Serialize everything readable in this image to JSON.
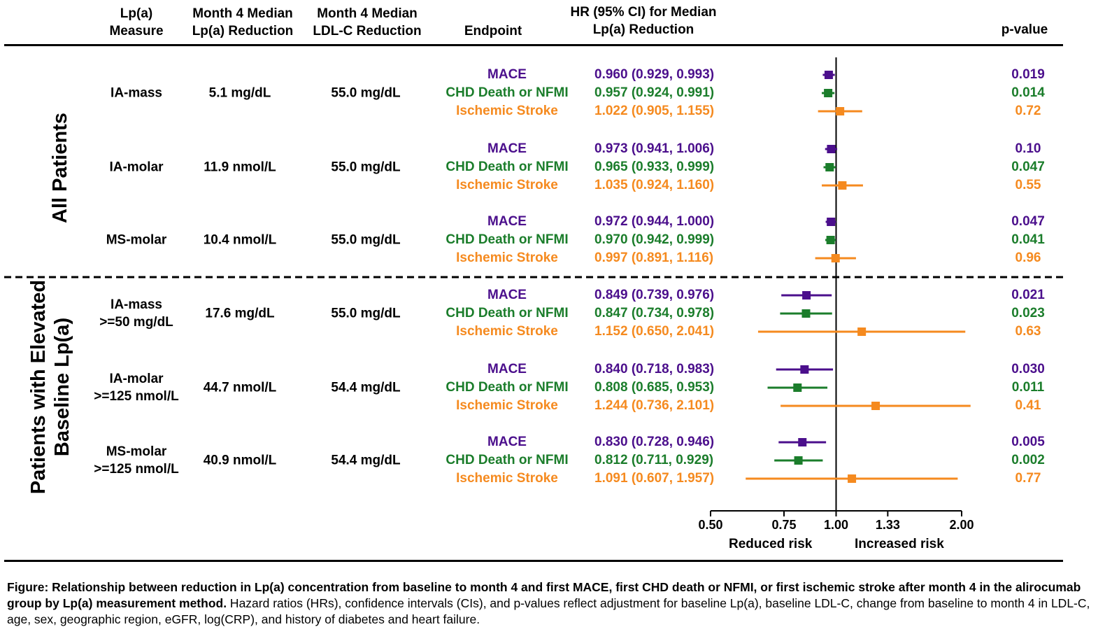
{
  "headers": {
    "measure": "Lp(a)\nMeasure",
    "lpa_reduction": "Month 4 Median\nLp(a) Reduction",
    "ldl_reduction": "Month 4 Median\nLDL-C Reduction",
    "endpoint": "Endpoint",
    "hr": "HR (95% CI) for Median\nLp(a) Reduction",
    "pvalue": "p-value"
  },
  "groups": {
    "all": "All Patients",
    "elevated_line1": "Patients with Elevated",
    "elevated_line2": "Baseline Lp(a)"
  },
  "colors": {
    "MACE": "#4b0f8c",
    "CHD": "#1b7d2b",
    "Stroke": "#f58a1f"
  },
  "rows": [
    {
      "measure": "IA-mass",
      "lpa": "5.1 mg/dL",
      "ldl": "55.0 mg/dL"
    },
    {
      "measure": "IA-molar",
      "lpa": "11.9 nmol/L",
      "ldl": "55.0 mg/dL"
    },
    {
      "measure": "MS-molar",
      "lpa": "10.4 nmol/L",
      "ldl": "55.0 mg/dL"
    },
    {
      "measure": "IA-mass\n>=50 mg/dL",
      "lpa": "17.6 mg/dL",
      "ldl": "55.0 mg/dL"
    },
    {
      "measure": "IA-molar\n>=125 nmol/L",
      "lpa": "44.7 nmol/L",
      "ldl": "54.4 mg/dL"
    },
    {
      "measure": "MS-molar\n>=125 nmol/L",
      "lpa": "40.9 nmol/L",
      "ldl": "54.4 mg/dL"
    }
  ],
  "chart_data": {
    "type": "scatter",
    "x_axis": {
      "scale": "log",
      "xlim": [
        0.5,
        2.0
      ],
      "ticks": [
        "0.50",
        "0.75",
        "1.00",
        "1.33",
        "2.00"
      ],
      "reference_line": 1.0
    },
    "axis_annotations": {
      "left": "Reduced risk",
      "right": "Increased risk"
    },
    "series": [
      {
        "group": "All Patients",
        "measure": "IA-mass",
        "endpoint": "MACE",
        "hr": 0.96,
        "lo": 0.929,
        "hi": 0.993,
        "label": "0.960 (0.929, 0.993)",
        "p": "0.019"
      },
      {
        "group": "All Patients",
        "measure": "IA-mass",
        "endpoint": "CHD Death or NFMI",
        "hr": 0.957,
        "lo": 0.924,
        "hi": 0.991,
        "label": "0.957 (0.924, 0.991)",
        "p": "0.014"
      },
      {
        "group": "All Patients",
        "measure": "IA-mass",
        "endpoint": "Ischemic Stroke",
        "hr": 1.022,
        "lo": 0.905,
        "hi": 1.155,
        "label": "1.022 (0.905, 1.155)",
        "p": "0.72"
      },
      {
        "group": "All Patients",
        "measure": "IA-molar",
        "endpoint": "MACE",
        "hr": 0.973,
        "lo": 0.941,
        "hi": 1.006,
        "label": "0.973 (0.941, 1.006)",
        "p": "0.10"
      },
      {
        "group": "All Patients",
        "measure": "IA-molar",
        "endpoint": "CHD Death or NFMI",
        "hr": 0.965,
        "lo": 0.933,
        "hi": 0.999,
        "label": "0.965 (0.933, 0.999)",
        "p": "0.047"
      },
      {
        "group": "All Patients",
        "measure": "IA-molar",
        "endpoint": "Ischemic Stroke",
        "hr": 1.035,
        "lo": 0.924,
        "hi": 1.16,
        "label": "1.035 (0.924, 1.160)",
        "p": "0.55"
      },
      {
        "group": "All Patients",
        "measure": "MS-molar",
        "endpoint": "MACE",
        "hr": 0.972,
        "lo": 0.944,
        "hi": 1.0,
        "label": "0.972 (0.944, 1.000)",
        "p": "0.047"
      },
      {
        "group": "All Patients",
        "measure": "MS-molar",
        "endpoint": "CHD Death or NFMI",
        "hr": 0.97,
        "lo": 0.942,
        "hi": 0.999,
        "label": "0.970 (0.942, 0.999)",
        "p": "0.041"
      },
      {
        "group": "All Patients",
        "measure": "MS-molar",
        "endpoint": "Ischemic Stroke",
        "hr": 0.997,
        "lo": 0.891,
        "hi": 1.116,
        "label": "0.997 (0.891, 1.116)",
        "p": "0.96"
      },
      {
        "group": "Elevated",
        "measure": "IA-mass >=50 mg/dL",
        "endpoint": "MACE",
        "hr": 0.849,
        "lo": 0.739,
        "hi": 0.976,
        "label": "0.849 (0.739, 0.976)",
        "p": "0.021"
      },
      {
        "group": "Elevated",
        "measure": "IA-mass >=50 mg/dL",
        "endpoint": "CHD Death or NFMI",
        "hr": 0.847,
        "lo": 0.734,
        "hi": 0.978,
        "label": "0.847 (0.734, 0.978)",
        "p": "0.023"
      },
      {
        "group": "Elevated",
        "measure": "IA-mass >=50 mg/dL",
        "endpoint": "Ischemic Stroke",
        "hr": 1.152,
        "lo": 0.65,
        "hi": 2.041,
        "label": "1.152 (0.650, 2.041)",
        "p": "0.63"
      },
      {
        "group": "Elevated",
        "measure": "IA-molar >=125 nmol/L",
        "endpoint": "MACE",
        "hr": 0.84,
        "lo": 0.718,
        "hi": 0.983,
        "label": "0.840 (0.718, 0.983)",
        "p": "0.030"
      },
      {
        "group": "Elevated",
        "measure": "IA-molar >=125 nmol/L",
        "endpoint": "CHD Death or NFMI",
        "hr": 0.808,
        "lo": 0.685,
        "hi": 0.953,
        "label": "0.808 (0.685, 0.953)",
        "p": "0.011"
      },
      {
        "group": "Elevated",
        "measure": "IA-molar >=125 nmol/L",
        "endpoint": "Ischemic Stroke",
        "hr": 1.244,
        "lo": 0.736,
        "hi": 2.101,
        "label": "1.244 (0.736, 2.101)",
        "p": "0.41"
      },
      {
        "group": "Elevated",
        "measure": "MS-molar >=125 nmol/L",
        "endpoint": "MACE",
        "hr": 0.83,
        "lo": 0.728,
        "hi": 0.946,
        "label": "0.830 (0.728, 0.946)",
        "p": "0.005"
      },
      {
        "group": "Elevated",
        "measure": "MS-molar >=125 nmol/L",
        "endpoint": "CHD Death or NFMI",
        "hr": 0.812,
        "lo": 0.711,
        "hi": 0.929,
        "label": "0.812 (0.711, 0.929)",
        "p": "0.002"
      },
      {
        "group": "Elevated",
        "measure": "MS-molar >=125 nmol/L",
        "endpoint": "Ischemic Stroke",
        "hr": 1.091,
        "lo": 0.607,
        "hi": 1.957,
        "label": "1.091 (0.607, 1.957)",
        "p": "0.77"
      }
    ]
  },
  "caption": {
    "bold": "Figure: Relationship between reduction in Lp(a) concentration from baseline to month 4 and first MACE, first CHD death or NFMI, or first ischemic stroke after month 4 in the alirocumab group by Lp(a) measurement method.",
    "normal": " Hazard ratios (HRs), confidence intervals (CIs), and p-values reflect adjustment for baseline Lp(a), baseline LDL-C, change from baseline to month 4 in LDL-C, age, sex, geographic region, eGFR, log(CRP), and history of diabetes and heart failure."
  }
}
